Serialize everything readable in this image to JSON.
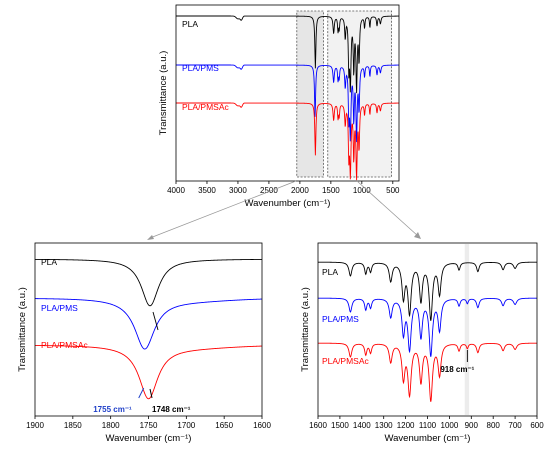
{
  "chart_data": [
    {
      "id": "full",
      "type": "line",
      "xlabel": "Wavenumber (cm⁻¹)",
      "ylabel": "Transmittance (a.u.)",
      "xlim": [
        4000,
        400
      ],
      "x_reversed": true,
      "xticks": [
        4000,
        3500,
        3000,
        2500,
        2000,
        1500,
        1000,
        500
      ],
      "y_axis_values_shown": false,
      "highlight_regions": [
        {
          "from": 2050,
          "to": 1620,
          "fill": "#e6e6e6"
        },
        {
          "from": 1550,
          "to": 520,
          "fill": "#f2f2f2"
        }
      ],
      "series": [
        {
          "name": "PLA",
          "color": "#000000"
        },
        {
          "name": "PLA/PMS",
          "color": "#0000ff"
        },
        {
          "name": "PLA/PMSAc",
          "color": "#ff0000"
        }
      ]
    },
    {
      "id": "carbonyl-zoom",
      "type": "line",
      "xlabel": "Wavenumber (cm⁻¹)",
      "ylabel": "Transmittance (a.u.)",
      "xlim": [
        1900,
        1600
      ],
      "x_reversed": true,
      "xticks": [
        1900,
        1850,
        1800,
        1750,
        1700,
        1650,
        1600
      ],
      "series": [
        {
          "name": "PLA",
          "color": "#000000",
          "minimum_at": 1748
        },
        {
          "name": "PLA/PMS",
          "color": "#0000ff",
          "minimum_at": 1755
        },
        {
          "name": "PLA/PMSAc",
          "color": "#ff0000",
          "minimum_at": 1750
        }
      ],
      "annotations": [
        {
          "text": "1755 cm⁻¹",
          "color": "#1f3fc8",
          "x": 1755
        },
        {
          "text": "1748 cm⁻¹",
          "color": "#000000",
          "x": 1748
        }
      ]
    },
    {
      "id": "fingerprint-zoom",
      "type": "line",
      "xlabel": "Wavenumber (cm⁻¹)",
      "ylabel": "Transmittance (a.u.)",
      "xlim": [
        1600,
        600
      ],
      "x_reversed": true,
      "xticks": [
        1600,
        1500,
        1400,
        1300,
        1200,
        1100,
        1000,
        900,
        800,
        700,
        600
      ],
      "highlight_band": {
        "from": 930,
        "to": 910,
        "fill": "#ececec"
      },
      "series": [
        {
          "name": "PLA",
          "color": "#000000"
        },
        {
          "name": "PLA/PMS",
          "color": "#0000ff"
        },
        {
          "name": "PLA/PMSAc",
          "color": "#ff0000"
        }
      ],
      "annotations": [
        {
          "text": "918 cm⁻¹",
          "color": "#000000",
          "x": 918
        }
      ]
    }
  ]
}
